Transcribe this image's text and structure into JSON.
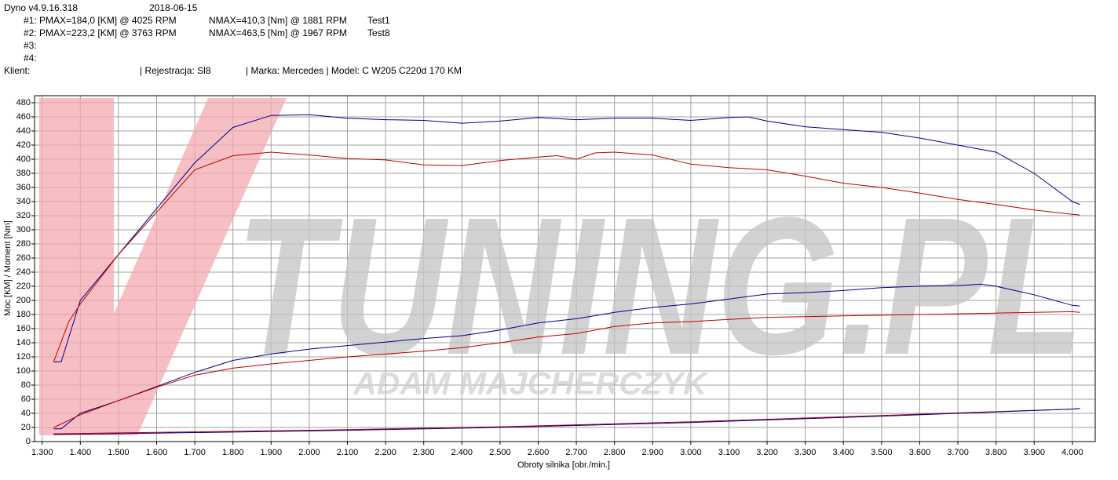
{
  "chart_data": {
    "type": "line",
    "title": "Dyno v4.9.16.318",
    "date": "2018-06-15",
    "runs": [
      {
        "label": "#1:",
        "pmax": "PMAX=184,0 [KM] @ 4025 RPM",
        "nmax": "NMAX=410,3 [Nm] @ 1881 RPM",
        "name": "Test1"
      },
      {
        "label": "#2:",
        "pmax": "PMAX=223,2 [KM] @ 3763 RPM",
        "nmax": "NMAX=463,5 [Nm] @ 1967 RPM",
        "name": "Test8"
      },
      {
        "label": "#3:"
      },
      {
        "label": "#4:"
      }
    ],
    "client": "Klient:",
    "registration": "| Rejestracja: Sl8",
    "vehicle": "| Marka: Mercedes | Model: C W205 C220d 170 KM",
    "watermark": "TUNING.PL",
    "watermark_sub": "ADAM MAJCHERCZYK",
    "x_label": "Obroty silnika [obr./min.]",
    "y_label": "Moc [KM] / Moment [Nm]",
    "grid": true,
    "xlim": [
      1.28,
      4.06
    ],
    "ylim": [
      0,
      490
    ],
    "xticks": [
      {
        "value": 1.3,
        "label": "1.300"
      },
      {
        "value": 1.4,
        "label": "1.400"
      },
      {
        "value": 1.5,
        "label": "1.500"
      },
      {
        "value": 1.6,
        "label": "1.600"
      },
      {
        "value": 1.7,
        "label": "1.700"
      },
      {
        "value": 1.8,
        "label": "1.800"
      },
      {
        "value": 1.9,
        "label": "1.900"
      },
      {
        "value": 2.0,
        "label": "2.000"
      },
      {
        "value": 2.1,
        "label": "2.100"
      },
      {
        "value": 2.2,
        "label": "2.200"
      },
      {
        "value": 2.3,
        "label": "2.300"
      },
      {
        "value": 2.4,
        "label": "2.400"
      },
      {
        "value": 2.5,
        "label": "2.500"
      },
      {
        "value": 2.6,
        "label": "2.600"
      },
      {
        "value": 2.7,
        "label": "2.700"
      },
      {
        "value": 2.8,
        "label": "2.800"
      },
      {
        "value": 2.9,
        "label": "2.900"
      },
      {
        "value": 3.0,
        "label": "3.000"
      },
      {
        "value": 3.1,
        "label": "3.100"
      },
      {
        "value": 3.2,
        "label": "3.200"
      },
      {
        "value": 3.3,
        "label": "3.300"
      },
      {
        "value": 3.4,
        "label": "3.400"
      },
      {
        "value": 3.5,
        "label": "3.500"
      },
      {
        "value": 3.6,
        "label": "3.600"
      },
      {
        "value": 3.7,
        "label": "3.700"
      },
      {
        "value": 3.8,
        "label": "3.800"
      },
      {
        "value": 3.9,
        "label": "3.900"
      },
      {
        "value": 4.0,
        "label": "4.000"
      }
    ],
    "yticks": [
      0,
      20,
      40,
      60,
      80,
      100,
      120,
      140,
      160,
      180,
      200,
      220,
      240,
      260,
      280,
      300,
      320,
      340,
      360,
      380,
      400,
      420,
      440,
      460,
      480
    ],
    "series": [
      {
        "color": "#00008b",
        "x": [
          1.33,
          1.35,
          1.4,
          1.5,
          1.6,
          1.7,
          1.8,
          1.9,
          2.0,
          2.1,
          2.2,
          2.3,
          2.4,
          2.5,
          2.6,
          2.7,
          2.8,
          2.9,
          3.0,
          3.1,
          3.15,
          3.2,
          3.3,
          3.4,
          3.5,
          3.6,
          3.7,
          3.8,
          3.9,
          4.0,
          4.02
        ],
        "values": [
          113,
          113,
          200,
          265,
          330,
          395,
          445,
          462,
          463,
          458,
          456,
          455,
          451,
          454,
          459,
          456,
          458,
          458,
          455,
          459,
          460,
          454,
          446,
          442,
          438,
          430,
          420,
          410,
          380,
          340,
          336
        ]
      },
      {
        "color": "#c00000",
        "x": [
          1.33,
          1.37,
          1.4,
          1.5,
          1.6,
          1.7,
          1.8,
          1.9,
          2.0,
          2.1,
          2.2,
          2.3,
          2.4,
          2.5,
          2.6,
          2.65,
          2.7,
          2.75,
          2.8,
          2.9,
          3.0,
          3.1,
          3.2,
          3.3,
          3.4,
          3.5,
          3.6,
          3.7,
          3.8,
          3.9,
          4.0,
          4.02
        ],
        "values": [
          113,
          170,
          195,
          265,
          325,
          385,
          405,
          410,
          406,
          401,
          399,
          392,
          391,
          398,
          403,
          405,
          400,
          409,
          410,
          406,
          393,
          388,
          385,
          376,
          366,
          360,
          352,
          343,
          336,
          328,
          322,
          321
        ]
      },
      {
        "color": "#00008b",
        "x": [
          1.33,
          1.35,
          1.4,
          1.5,
          1.6,
          1.7,
          1.8,
          1.9,
          2.0,
          2.1,
          2.2,
          2.3,
          2.4,
          2.5,
          2.6,
          2.7,
          2.8,
          2.9,
          3.0,
          3.1,
          3.2,
          3.3,
          3.4,
          3.5,
          3.6,
          3.7,
          3.76,
          3.8,
          3.9,
          4.0,
          4.02
        ],
        "values": [
          18,
          18,
          40,
          58,
          78,
          98,
          115,
          124,
          131,
          136,
          141,
          146,
          150,
          158,
          168,
          174,
          183,
          190,
          195,
          202,
          209,
          211,
          214,
          218,
          220,
          221,
          223,
          220,
          208,
          193,
          192
        ]
      },
      {
        "color": "#c00000",
        "x": [
          1.33,
          1.37,
          1.4,
          1.5,
          1.6,
          1.7,
          1.8,
          1.9,
          2.0,
          2.1,
          2.2,
          2.3,
          2.4,
          2.5,
          2.6,
          2.7,
          2.8,
          2.9,
          3.0,
          3.1,
          3.2,
          3.3,
          3.4,
          3.5,
          3.6,
          3.7,
          3.8,
          3.9,
          4.0,
          4.02
        ],
        "values": [
          20,
          30,
          38,
          58,
          77,
          94,
          104,
          110,
          115,
          120,
          124,
          128,
          133,
          140,
          148,
          153,
          163,
          168,
          170,
          173,
          176,
          177,
          178,
          179,
          180,
          181,
          182,
          183,
          184,
          183
        ]
      },
      {
        "color": "#c00000",
        "x": [
          1.33,
          1.6,
          2.0,
          2.5,
          3.0,
          3.5,
          4.0,
          4.02
        ],
        "values": [
          11,
          13,
          16,
          21,
          28,
          37,
          46,
          47
        ]
      },
      {
        "color": "#00008b",
        "x": [
          1.33,
          1.6,
          2.0,
          2.5,
          3.0,
          3.5,
          4.0,
          4.02
        ],
        "values": [
          10,
          12,
          15,
          20,
          27,
          36,
          46,
          47
        ]
      }
    ]
  }
}
